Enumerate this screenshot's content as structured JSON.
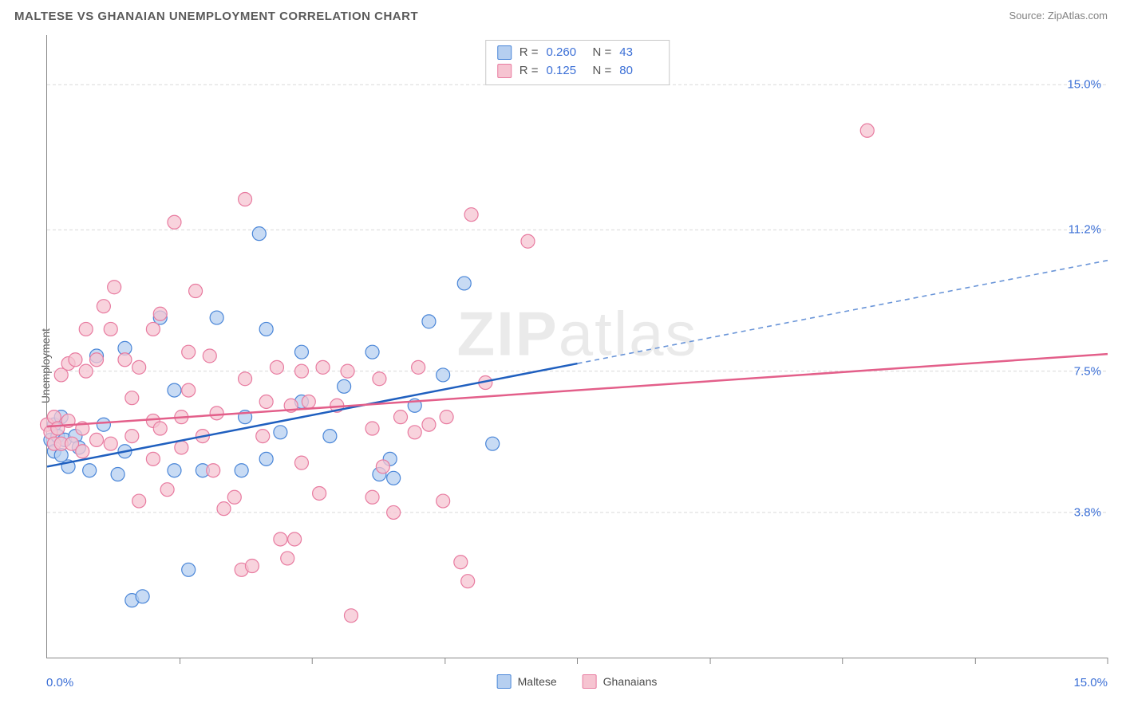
{
  "header": {
    "title": "MALTESE VS GHANAIAN UNEMPLOYMENT CORRELATION CHART",
    "source": "Source: ZipAtlas.com"
  },
  "chart": {
    "type": "scatter",
    "ylabel": "Unemployment",
    "watermark_a": "ZIP",
    "watermark_b": "atlas",
    "xlim": [
      0,
      15
    ],
    "ylim": [
      0,
      16.3
    ],
    "x_axis_min_label": "0.0%",
    "x_axis_max_label": "15.0%",
    "x_ticks": [
      1.88,
      3.75,
      5.63,
      7.5,
      9.38,
      11.25,
      13.13,
      15.0
    ],
    "y_gridlines": [
      {
        "value": 3.8,
        "label": "3.8%"
      },
      {
        "value": 7.5,
        "label": "7.5%"
      },
      {
        "value": 11.2,
        "label": "11.2%"
      },
      {
        "value": 15.0,
        "label": "15.0%"
      }
    ],
    "grid_color": "#d9d9d9",
    "grid_dash": "4,3",
    "axis_color": "#888888",
    "background_color": "#ffffff",
    "marker_radius": 8.5,
    "marker_stroke_width": 1.2,
    "series": [
      {
        "name": "Maltese",
        "fill": "#b6cff0",
        "stroke": "#4a86d8",
        "line_solid_color": "#1f5fbf",
        "line_dash_color": "#6a95d8",
        "trend": {
          "x1": 0,
          "y1": 5.0,
          "x2": 15,
          "y2": 10.4,
          "solid_until_x": 7.5
        },
        "points": [
          [
            0.05,
            5.7
          ],
          [
            0.1,
            5.4
          ],
          [
            0.1,
            6.1
          ],
          [
            0.15,
            5.8
          ],
          [
            0.2,
            5.3
          ],
          [
            0.2,
            6.3
          ],
          [
            0.25,
            5.7
          ],
          [
            0.3,
            5.0
          ],
          [
            0.4,
            5.8
          ],
          [
            0.45,
            5.5
          ],
          [
            0.6,
            4.9
          ],
          [
            0.7,
            7.9
          ],
          [
            0.8,
            6.1
          ],
          [
            1.0,
            4.8
          ],
          [
            1.1,
            8.1
          ],
          [
            1.1,
            5.4
          ],
          [
            1.2,
            1.5
          ],
          [
            1.35,
            1.6
          ],
          [
            1.6,
            8.9
          ],
          [
            1.8,
            7.0
          ],
          [
            1.8,
            4.9
          ],
          [
            2.0,
            2.3
          ],
          [
            2.2,
            4.9
          ],
          [
            2.4,
            8.9
          ],
          [
            2.75,
            4.9
          ],
          [
            2.8,
            6.3
          ],
          [
            3.0,
            11.1
          ],
          [
            3.1,
            5.2
          ],
          [
            3.1,
            8.6
          ],
          [
            3.3,
            5.9
          ],
          [
            3.6,
            6.7
          ],
          [
            3.6,
            8.0
          ],
          [
            4.0,
            5.8
          ],
          [
            4.2,
            7.1
          ],
          [
            4.6,
            8.0
          ],
          [
            4.7,
            4.8
          ],
          [
            4.85,
            5.2
          ],
          [
            4.9,
            4.7
          ],
          [
            5.2,
            6.6
          ],
          [
            5.4,
            8.8
          ],
          [
            5.6,
            7.4
          ],
          [
            5.9,
            9.8
          ],
          [
            6.3,
            5.6
          ]
        ]
      },
      {
        "name": "Ghanaians",
        "fill": "#f6c4d1",
        "stroke": "#e87ba0",
        "line_solid_color": "#e35f8a",
        "line_dash_color": "#e35f8a",
        "trend": {
          "x1": 0,
          "y1": 6.05,
          "x2": 15,
          "y2": 7.95,
          "solid_until_x": 15
        },
        "points": [
          [
            0.0,
            6.1
          ],
          [
            0.05,
            5.9
          ],
          [
            0.1,
            6.3
          ],
          [
            0.1,
            5.6
          ],
          [
            0.15,
            6.0
          ],
          [
            0.2,
            5.6
          ],
          [
            0.2,
            7.4
          ],
          [
            0.3,
            6.2
          ],
          [
            0.3,
            7.7
          ],
          [
            0.35,
            5.6
          ],
          [
            0.4,
            7.8
          ],
          [
            0.5,
            6.0
          ],
          [
            0.5,
            5.4
          ],
          [
            0.55,
            7.5
          ],
          [
            0.55,
            8.6
          ],
          [
            0.7,
            5.7
          ],
          [
            0.7,
            7.8
          ],
          [
            0.8,
            9.2
          ],
          [
            0.9,
            5.6
          ],
          [
            0.9,
            8.6
          ],
          [
            0.95,
            9.7
          ],
          [
            1.1,
            7.8
          ],
          [
            1.2,
            5.8
          ],
          [
            1.2,
            6.8
          ],
          [
            1.3,
            7.6
          ],
          [
            1.3,
            4.1
          ],
          [
            1.5,
            6.2
          ],
          [
            1.5,
            5.2
          ],
          [
            1.5,
            8.6
          ],
          [
            1.6,
            9.0
          ],
          [
            1.6,
            6.0
          ],
          [
            1.7,
            4.4
          ],
          [
            1.8,
            11.4
          ],
          [
            1.9,
            5.5
          ],
          [
            1.9,
            6.3
          ],
          [
            2.0,
            7.0
          ],
          [
            2.0,
            8.0
          ],
          [
            2.1,
            9.6
          ],
          [
            2.2,
            5.8
          ],
          [
            2.3,
            7.9
          ],
          [
            2.35,
            4.9
          ],
          [
            2.4,
            6.4
          ],
          [
            2.5,
            3.9
          ],
          [
            2.65,
            4.2
          ],
          [
            2.75,
            2.3
          ],
          [
            2.8,
            7.3
          ],
          [
            2.8,
            12.0
          ],
          [
            2.9,
            2.4
          ],
          [
            3.05,
            5.8
          ],
          [
            3.1,
            6.7
          ],
          [
            3.25,
            7.6
          ],
          [
            3.3,
            3.1
          ],
          [
            3.4,
            2.6
          ],
          [
            3.45,
            6.6
          ],
          [
            3.5,
            3.1
          ],
          [
            3.6,
            5.1
          ],
          [
            3.6,
            7.5
          ],
          [
            3.7,
            6.7
          ],
          [
            3.85,
            4.3
          ],
          [
            3.9,
            7.6
          ],
          [
            4.1,
            6.6
          ],
          [
            4.25,
            7.5
          ],
          [
            4.3,
            1.1
          ],
          [
            4.6,
            4.2
          ],
          [
            4.6,
            6.0
          ],
          [
            4.7,
            7.3
          ],
          [
            4.75,
            5.0
          ],
          [
            4.9,
            3.8
          ],
          [
            5.0,
            6.3
          ],
          [
            5.2,
            5.9
          ],
          [
            5.25,
            7.6
          ],
          [
            5.4,
            6.1
          ],
          [
            5.6,
            4.1
          ],
          [
            5.65,
            6.3
          ],
          [
            5.85,
            2.5
          ],
          [
            5.95,
            2.0
          ],
          [
            6.0,
            11.6
          ],
          [
            6.2,
            7.2
          ],
          [
            6.8,
            10.9
          ],
          [
            11.6,
            13.8
          ]
        ]
      }
    ],
    "legend": {
      "items": [
        {
          "name": "Maltese"
        },
        {
          "name": "Ghanaians"
        }
      ]
    },
    "stats_box": {
      "rows": [
        {
          "swatch_series": 0,
          "r_label": "R =",
          "r_value": "0.260",
          "n_label": "N =",
          "n_value": "43"
        },
        {
          "swatch_series": 1,
          "r_label": "R =",
          "r_value": "0.125",
          "n_label": "N =",
          "n_value": "80"
        }
      ]
    }
  }
}
